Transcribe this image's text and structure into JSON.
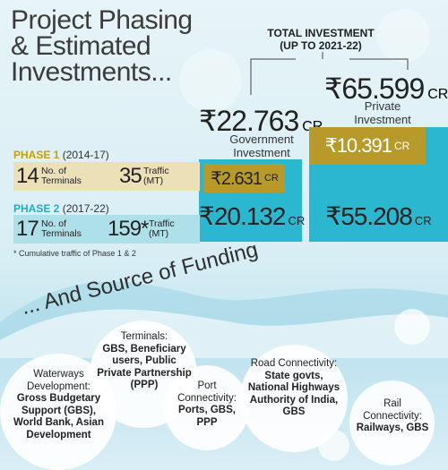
{
  "title": "Project Phasing & Estimated Investments...",
  "total": {
    "caption_line1": "TOTAL INVESTMENT",
    "caption_line2": "(UP TO 2021-22)"
  },
  "government": {
    "amount": "₹22.763",
    "unit": "CR",
    "label_line1": "Government",
    "label_line2": "Investment"
  },
  "private": {
    "amount": "₹65.599",
    "unit": "CR",
    "label_line1": "Private",
    "label_line2": "Investment"
  },
  "phase1": {
    "name": "PHASE 1",
    "years": "(2014-17)",
    "terminals_value": "14",
    "terminals_label_line1": "No. of",
    "terminals_label_line2": "Terminals",
    "traffic_value": "35",
    "traffic_label_line1": "Traffic",
    "traffic_label_line2": "(MT)",
    "gov_amount": "₹2.631",
    "gov_unit": "CR",
    "private_amount": "₹10.391",
    "private_unit": "CR"
  },
  "phase2": {
    "name": "PHASE 2",
    "years": "(2017-22)",
    "terminals_value": "17",
    "terminals_label_line1": "No. of",
    "terminals_label_line2": "Terminals",
    "traffic_value": "159*",
    "traffic_label_line1": "Traffic",
    "traffic_label_line2": "(MT)",
    "gov_amount": "₹20.132",
    "gov_unit": "CR",
    "private_amount": "₹55.208",
    "private_unit": "CR"
  },
  "footnote": "* Cumulative traffic of Phase 1 & 2",
  "funding_title": "... And Source of Funding",
  "funding": {
    "terminals": {
      "label": "Terminals:",
      "value": "GBS, Beneficiary users, Public Private Partnership (PPP)"
    },
    "waterways": {
      "label": "Waterways Development:",
      "value": "Gross Budgetary Support (GBS), World Bank, Asian Development"
    },
    "port": {
      "label": "Port Connectivity:",
      "value": "Ports, GBS, PPP"
    },
    "road": {
      "label": "Road Connectivity:",
      "value": "State govts, National Highways Authority of India, GBS"
    },
    "rail": {
      "label": "Rail Connectivity:",
      "value": "Railways, GBS"
    }
  },
  "colors": {
    "teal": "#2bb7cf",
    "gold": "#b89a2a",
    "sand": "#ece0b8",
    "lightteal": "#aee0ea"
  }
}
